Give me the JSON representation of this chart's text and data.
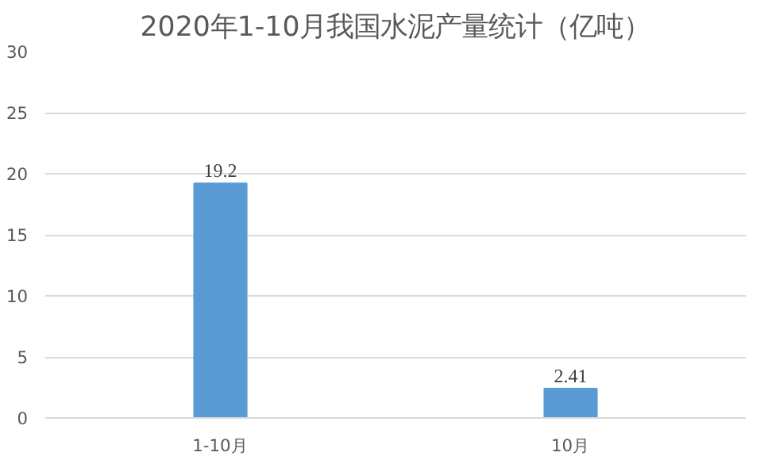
{
  "chart_data": {
    "type": "bar",
    "title": "2020年1-10月我国水泥产量统计（亿吨）",
    "categories": [
      "1-10月",
      "10月"
    ],
    "values": [
      19.2,
      2.41
    ],
    "value_labels": [
      "19.2",
      "2.41"
    ],
    "color": "#5b9bd5",
    "ylim": [
      0,
      30
    ],
    "yticks": [
      0,
      5,
      10,
      15,
      20,
      25,
      30
    ],
    "grid": "y"
  }
}
